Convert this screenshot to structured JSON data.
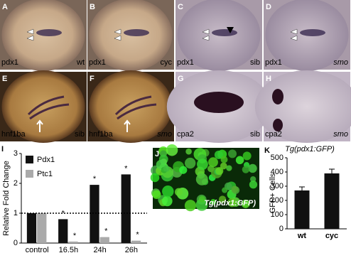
{
  "panels": [
    {
      "letter": "A",
      "gene": "pdx1",
      "condition": "wt"
    },
    {
      "letter": "B",
      "gene": "pdx1",
      "condition": "cyc"
    },
    {
      "letter": "C",
      "gene": "pdx1",
      "condition": "sib"
    },
    {
      "letter": "D",
      "gene": "pdx1",
      "condition": "smo"
    },
    {
      "letter": "E",
      "gene": "hnf1ba",
      "condition": "sib"
    },
    {
      "letter": "F",
      "gene": "hnf1ba",
      "condition": "smo"
    },
    {
      "letter": "G",
      "gene": "cpa2",
      "condition": "sib"
    },
    {
      "letter": "H",
      "gene": "cpa2",
      "condition": "smo"
    }
  ],
  "image_panel": {
    "letter": "J",
    "label": "Tg(pdx1:GFP)"
  },
  "chart_data": [
    {
      "type": "bar",
      "panel": "I",
      "y_label": "Relative Fold Change",
      "categories": [
        "control",
        "16.5h",
        "24h",
        "26h"
      ],
      "series": [
        {
          "name": "Pdx1",
          "color": "#111111",
          "values": [
            1,
            0.8,
            1.95,
            2.3
          ]
        },
        {
          "name": "Ptc1",
          "color": "#aaaaaa",
          "values": [
            1,
            0.05,
            0.2,
            0.08
          ]
        }
      ],
      "ylim": [
        0,
        3
      ],
      "yticks": [
        0,
        1,
        2,
        3
      ],
      "reference_line": 1,
      "annotations": [
        "*",
        "*",
        "*",
        "*",
        "*",
        "*"
      ]
    },
    {
      "type": "bar",
      "panel": "K",
      "title": "Tg(pdx1:GFP)",
      "y_label": "GFP+ Cells",
      "categories": [
        "wt",
        "cyc"
      ],
      "values": [
        270,
        390
      ],
      "errors": [
        25,
        30
      ],
      "color": "#111111",
      "ylim": [
        0,
        500
      ],
      "yticks": [
        0,
        100,
        200,
        300,
        400,
        500
      ]
    }
  ]
}
